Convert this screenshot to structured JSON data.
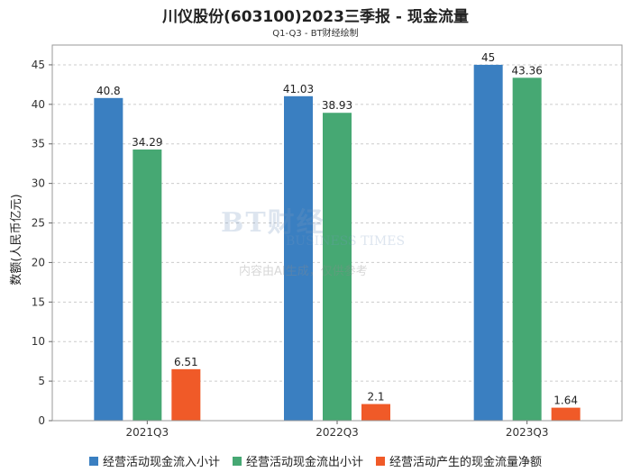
{
  "title": "川仪股份(603100)2023三季报 - 现金流量",
  "subtitle": "Q1-Q3 - BT财经绘制",
  "watermark": {
    "main": "BT财经",
    "sub": "BUSINESS TIMES",
    "note": "内容由AI生成，仅供参考"
  },
  "colors": {
    "series1": "#3a7fc1",
    "series2": "#46a873",
    "series3": "#f05a28"
  },
  "chart_data": {
    "type": "bar",
    "categories": [
      "2021Q3",
      "2022Q3",
      "2023Q3"
    ],
    "series": [
      {
        "name": "经营活动现金流入小计",
        "values": [
          40.8,
          41.03,
          45
        ]
      },
      {
        "name": "经营活动现金流出小计",
        "values": [
          34.29,
          38.93,
          43.36
        ]
      },
      {
        "name": "经营活动产生的现金流量净额",
        "values": [
          6.51,
          2.1,
          1.64
        ]
      }
    ],
    "ylabel": "数额(人民币亿元)",
    "ylim": [
      0,
      47.5
    ],
    "yticks": [
      0,
      5,
      10,
      15,
      20,
      25,
      30,
      35,
      40,
      45
    ],
    "grid": true,
    "legend": "bottom"
  }
}
